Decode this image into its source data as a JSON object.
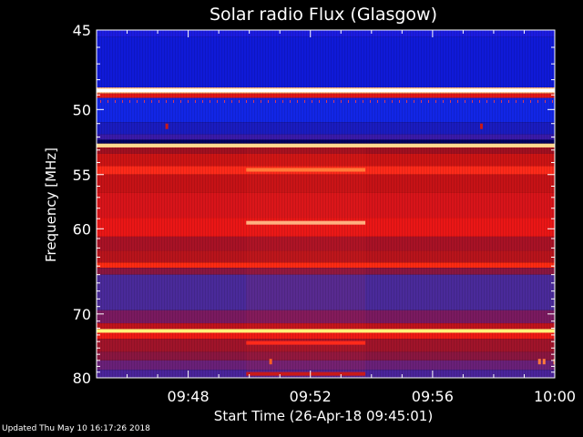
{
  "chart_data": {
    "type": "heatmap",
    "title": "Solar radio Flux (Glasgow)",
    "xlabel": "Start Time (26-Apr-18 09:45:01)",
    "ylabel": "Frequency [MHz]",
    "x_ticks": [
      "09:48",
      "09:52",
      "09:56",
      "10:00"
    ],
    "x_tick_minutes": [
      3,
      7,
      11,
      15
    ],
    "xlim_minutes": [
      0,
      15
    ],
    "y_ticks": [
      45,
      50,
      55,
      60,
      70,
      80
    ],
    "ylim": [
      45,
      80
    ],
    "y_scale": "reciprocal",
    "colors": {
      "background": "#000000",
      "deep_blue": "#101ad8",
      "blue": "#2a2fe0",
      "purple": "#5a2aa6",
      "dark_red": "#9a1234",
      "red": "#d8141a",
      "bright_red": "#ff2a12",
      "orange": "#ff7a3a",
      "yellow": "#fff27a",
      "white": "#ffffff"
    },
    "background_bands": [
      {
        "from": 45.0,
        "to": 45.4,
        "color": "#1c1ce0"
      },
      {
        "from": 45.4,
        "to": 48.5,
        "color": "#101ad8"
      },
      {
        "from": 48.5,
        "to": 48.9,
        "color": "#ffb070"
      },
      {
        "from": 48.9,
        "to": 49.2,
        "color": "#e01818"
      },
      {
        "from": 49.2,
        "to": 50.9,
        "color": "#1226e6"
      },
      {
        "from": 50.9,
        "to": 51.8,
        "color": "#1a1cc0"
      },
      {
        "from": 51.8,
        "to": 52.2,
        "color": "#3a1aa8"
      },
      {
        "from": 52.2,
        "to": 52.5,
        "color": "#000060"
      },
      {
        "from": 52.5,
        "to": 52.8,
        "color": "#ff9a50"
      },
      {
        "from": 52.8,
        "to": 53.3,
        "color": "#a01020"
      },
      {
        "from": 53.3,
        "to": 54.3,
        "color": "#cc1414"
      },
      {
        "from": 54.3,
        "to": 55.0,
        "color": "#ff2a1a"
      },
      {
        "from": 55.0,
        "to": 56.6,
        "color": "#c61216"
      },
      {
        "from": 56.6,
        "to": 58.9,
        "color": "#d8141a"
      },
      {
        "from": 58.9,
        "to": 60.8,
        "color": "#ea1616"
      },
      {
        "from": 60.8,
        "to": 62.3,
        "color": "#a81226"
      },
      {
        "from": 62.3,
        "to": 63.6,
        "color": "#b8141c"
      },
      {
        "from": 63.6,
        "to": 64.2,
        "color": "#ff2a12"
      },
      {
        "from": 64.2,
        "to": 65.0,
        "color": "#8a1640"
      },
      {
        "from": 65.0,
        "to": 69.5,
        "color": "#4a2a9a"
      },
      {
        "from": 69.5,
        "to": 71.3,
        "color": "#7a1a60"
      },
      {
        "from": 71.3,
        "to": 72.2,
        "color": "#c0141c"
      },
      {
        "from": 72.2,
        "to": 72.6,
        "color": "#ffe27a"
      },
      {
        "from": 72.6,
        "to": 73.6,
        "color": "#ee1a14"
      },
      {
        "from": 73.6,
        "to": 75.6,
        "color": "#a0142a"
      },
      {
        "from": 75.6,
        "to": 77.0,
        "color": "#8a1640"
      },
      {
        "from": 77.0,
        "to": 78.6,
        "color": "#6a2078"
      },
      {
        "from": 78.6,
        "to": 80.0,
        "color": "#4a249a"
      }
    ],
    "bright_lines": [
      {
        "freq": 48.7,
        "color": "#ffffff",
        "x_start": 0,
        "x_end": 15
      },
      {
        "freq": 52.65,
        "color": "#ffd890",
        "x_start": 0,
        "x_end": 15
      },
      {
        "freq": 72.4,
        "color": "#fff27a",
        "x_start": 0,
        "x_end": 15
      }
    ],
    "bursts": [
      {
        "freq": 54.6,
        "x_start": 4.9,
        "x_end": 8.8,
        "color": "#ff7a3a"
      },
      {
        "freq": 59.4,
        "x_start": 4.9,
        "x_end": 8.8,
        "color": "#ffb080"
      },
      {
        "freq": 74.2,
        "x_start": 4.9,
        "x_end": 8.8,
        "color": "#ff2a1a"
      },
      {
        "freq": 79.3,
        "x_start": 4.9,
        "x_end": 8.8,
        "color": "#c81a1a"
      }
    ],
    "dots": [
      {
        "freq": 51.2,
        "x": 2.3,
        "color": "#c81818"
      },
      {
        "freq": 51.2,
        "x": 12.6,
        "color": "#c81818"
      },
      {
        "freq": 77.2,
        "x": 5.7,
        "color": "#ff6020"
      },
      {
        "freq": 77.2,
        "x": 14.5,
        "color": "#ff7a3a"
      },
      {
        "freq": 77.2,
        "x": 14.65,
        "color": "#ff7a3a"
      },
      {
        "freq": 77.2,
        "x": 15.0,
        "color": "#ff7a3a"
      }
    ],
    "mid_block": {
      "x_start": 4.9,
      "x_end": 8.8
    }
  },
  "footer": {
    "updated": "Updated Thu May 10 16:17:26 2018"
  }
}
